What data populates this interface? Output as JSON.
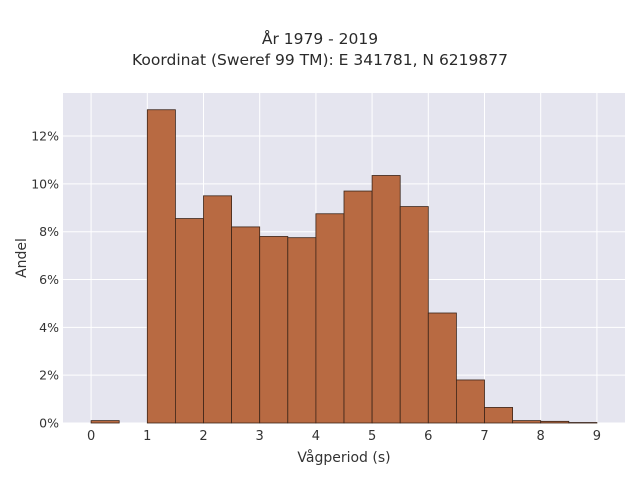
{
  "chart_data": {
    "type": "bar",
    "title": [
      "År 1979 - 2019",
      "Koordinat (Sweref 99 TM): E 341781, N 6219877"
    ],
    "xlabel": "Vågperiod (s)",
    "ylabel": "Andel",
    "xlim": [
      -0.5,
      9.5
    ],
    "ylim": [
      0,
      13.8
    ],
    "grid": true,
    "bin_width": 0.5,
    "x_ticks": [
      0,
      1,
      2,
      3,
      4,
      5,
      6,
      7,
      8,
      9
    ],
    "x_tick_labels": [
      "0",
      "1",
      "2",
      "3",
      "4",
      "5",
      "6",
      "7",
      "8",
      "9"
    ],
    "y_ticks": [
      0,
      2,
      4,
      6,
      8,
      10,
      12
    ],
    "y_tick_labels": [
      "0%",
      "2%",
      "4%",
      "6%",
      "8%",
      "10%",
      "12%"
    ],
    "bins": [
      {
        "start": 0.0,
        "value": 0.1
      },
      {
        "start": 1.0,
        "value": 13.1
      },
      {
        "start": 1.5,
        "value": 8.55
      },
      {
        "start": 2.0,
        "value": 9.5
      },
      {
        "start": 2.5,
        "value": 8.2
      },
      {
        "start": 3.0,
        "value": 7.8
      },
      {
        "start": 3.5,
        "value": 7.75
      },
      {
        "start": 4.0,
        "value": 8.75
      },
      {
        "start": 4.5,
        "value": 9.7
      },
      {
        "start": 5.0,
        "value": 10.35
      },
      {
        "start": 5.5,
        "value": 9.05
      },
      {
        "start": 6.0,
        "value": 4.6
      },
      {
        "start": 6.5,
        "value": 1.8
      },
      {
        "start": 7.0,
        "value": 0.65
      },
      {
        "start": 7.5,
        "value": 0.1
      },
      {
        "start": 8.0,
        "value": 0.07
      },
      {
        "start": 8.5,
        "value": 0.02
      }
    ],
    "colors": {
      "bar": "#b86a42",
      "bar_edge": "#3b2418",
      "plot_bg": "#e5e5ef",
      "grid": "#ffffff"
    }
  }
}
